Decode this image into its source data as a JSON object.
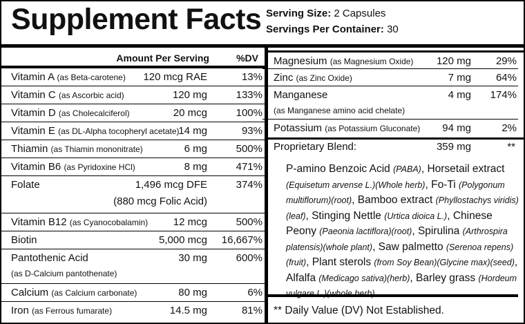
{
  "title": "Supplement Facts",
  "serving": [
    {
      "label": "Serving Size:",
      "value": "2 Capsules"
    },
    {
      "label": "Servings Per Container:",
      "value": "30"
    }
  ],
  "left": {
    "headers": [
      "Amount Per Serving",
      "%DV"
    ],
    "rows": [
      {
        "name": "Vitamin A",
        "source": "(as Beta-carotene)",
        "amount": "120 mcg RAE",
        "dv": "13%"
      },
      {
        "name": "Vitamin C",
        "source": "(as Ascorbic acid)",
        "amount": "120 mg",
        "dv": "133%"
      },
      {
        "name": "Vitamin D",
        "source": "(as Cholecalciferol)",
        "amount": "20 mcg",
        "dv": "100%"
      },
      {
        "name": "Vitamin E",
        "source": "(as DL-Alpha tocopheryl acetate)",
        "amount": "14 mg",
        "dv": "93%"
      },
      {
        "name": "Thiamin",
        "source": "(as Thiamin mononitrate)",
        "amount": "6 mg",
        "dv": "500%"
      },
      {
        "name": "Vitamin B6",
        "source": "(as Pyridoxine HCl)",
        "amount": "8 mg",
        "dv": "471%"
      },
      {
        "name": "Folate",
        "amount": "1,496 mcg DFE",
        "amount_note": "(880 mcg Folic Acid)",
        "dv": "374%"
      },
      {
        "name": "Vitamin B12",
        "source": "(as Cyanocobalamin)",
        "amount": "12 mcg",
        "dv": "500%"
      },
      {
        "name": "Biotin",
        "amount": "5,000 mcg",
        "dv": "16,667%"
      },
      {
        "name": "Pantothenic Acid",
        "source": "(as D-Calcium pantothenate)",
        "amount": "30 mg",
        "dv": "600%"
      },
      {
        "name": "Calcium",
        "source": "(as Calcium carbonate)",
        "amount": "80 mg",
        "dv": "6%"
      },
      {
        "name": "Iron",
        "source": "(as Ferrous fumarate)",
        "amount": "14.5 mg",
        "dv": "81%"
      }
    ]
  },
  "right": {
    "rows": [
      {
        "name": "Magnesium",
        "source": "(as Magnesium Oxide)",
        "amount": "120 mg",
        "dv": "29%"
      },
      {
        "name": "Zinc",
        "source": "(as Zinc Oxide)",
        "amount": "7 mg",
        "dv": "64%"
      },
      {
        "name": "Manganese",
        "source": "(as Manganese amino acid chelate)",
        "amount": "4 mg",
        "dv": "174%"
      },
      {
        "name": "Potassium",
        "source": "(as Potassium Gluconate)",
        "amount": "94 mg",
        "dv": "2%"
      }
    ],
    "blend": {
      "name": "Proprietary Blend:",
      "amount": "359 mg",
      "dv": "**",
      "segments": [
        {
          "text": "P-amino Benzoic Acid ",
          "italic": false
        },
        {
          "text": "(PABA)",
          "italic": true
        },
        {
          "text": ", Horsetail extract ",
          "italic": false
        },
        {
          "text": "(Equisetum arvense L.)(Whole herb)",
          "italic": true
        },
        {
          "text": ", Fo-Ti ",
          "italic": false
        },
        {
          "text": "(Polygonum multiflorum)(root)",
          "italic": true
        },
        {
          "text": ", Bamboo extract ",
          "italic": false
        },
        {
          "text": "(Phyllostachys viridis)(leaf)",
          "italic": true
        },
        {
          "text": ", Stinging Nettle ",
          "italic": false
        },
        {
          "text": "(Urtica dioica L.)",
          "italic": true
        },
        {
          "text": ", Chinese Peony ",
          "italic": false
        },
        {
          "text": "(Paeonia lactiflora)(root)",
          "italic": true
        },
        {
          "text": ", Spirulina ",
          "italic": false
        },
        {
          "text": "(Arthrospira platensis)(whole plant)",
          "italic": true
        },
        {
          "text": ", Saw palmetto ",
          "italic": false
        },
        {
          "text": "(Serenoa repens)(fruit)",
          "italic": true
        },
        {
          "text": ", Plant sterols ",
          "italic": false
        },
        {
          "text": "(from Soy Bean)(Glycine max)(seed)",
          "italic": true
        },
        {
          "text": ", Alfalfa ",
          "italic": false
        },
        {
          "text": "(Medicago sativa)(herb)",
          "italic": true
        },
        {
          "text": ", Barley grass ",
          "italic": false
        },
        {
          "text": "(Hordeum vulgare L.)(whole herb)",
          "italic": true
        }
      ]
    },
    "footnote": "** Daily Value (DV) Not Established."
  }
}
